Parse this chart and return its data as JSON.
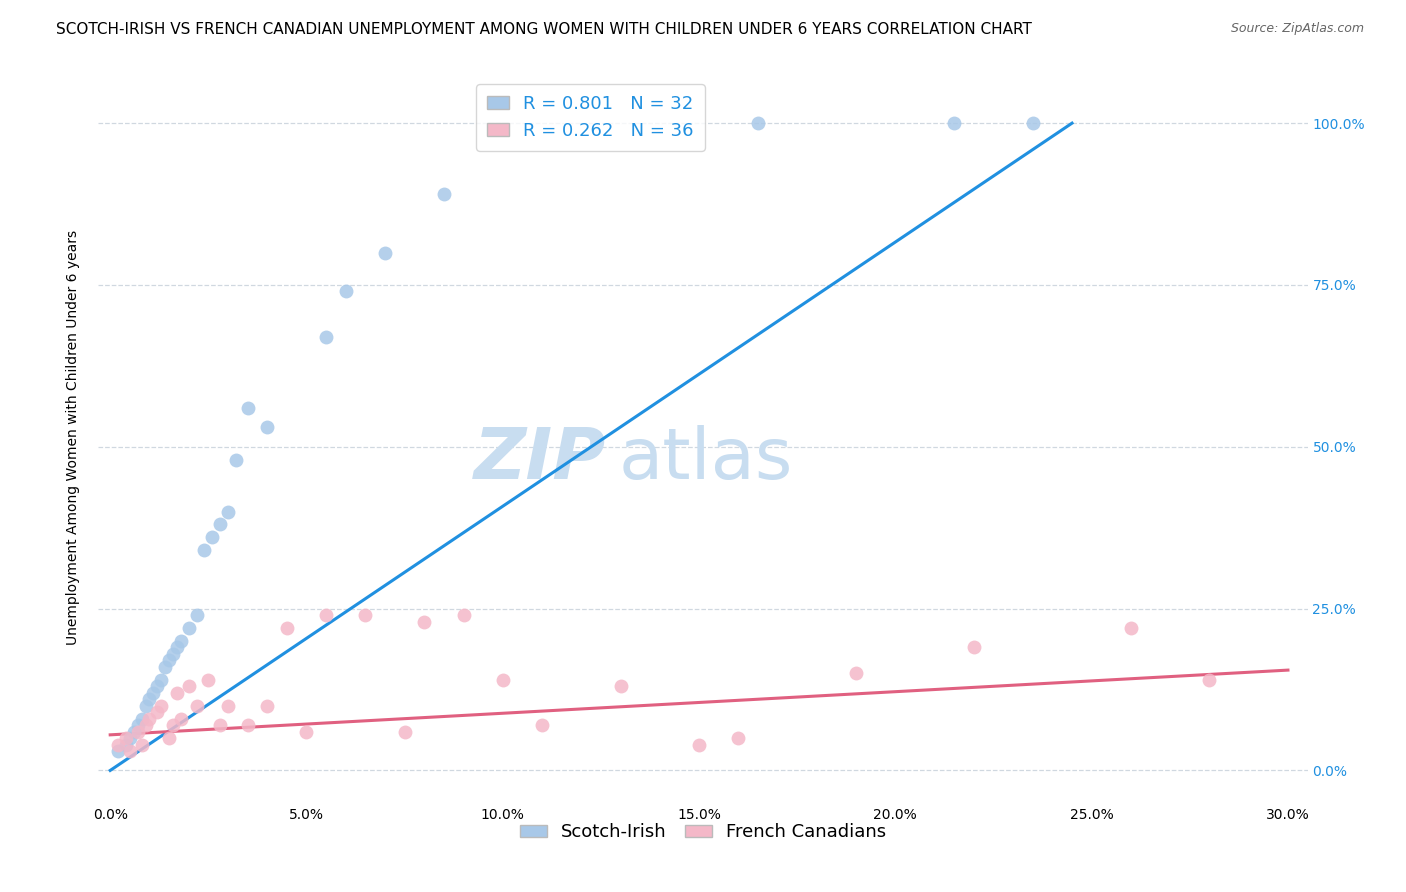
{
  "title": "SCOTCH-IRISH VS FRENCH CANADIAN UNEMPLOYMENT AMONG WOMEN WITH CHILDREN UNDER 6 YEARS CORRELATION CHART",
  "source": "Source: ZipAtlas.com",
  "ylabel": "Unemployment Among Women with Children Under 6 years",
  "x_ticks": [
    "0.0%",
    "5.0%",
    "10.0%",
    "15.0%",
    "20.0%",
    "25.0%",
    "30.0%"
  ],
  "x_tick_vals": [
    0.0,
    0.05,
    0.1,
    0.15,
    0.2,
    0.25,
    0.3
  ],
  "y_ticks_right": [
    "100.0%",
    "75.0%",
    "50.0%",
    "25.0%",
    "0.0%"
  ],
  "y_tick_right_vals": [
    1.0,
    0.75,
    0.5,
    0.25,
    0.0
  ],
  "xlim": [
    -0.003,
    0.305
  ],
  "ylim": [
    -0.05,
    1.08
  ],
  "r_blue": 0.801,
  "n_blue": 32,
  "r_pink": 0.262,
  "n_pink": 36,
  "blue_color": "#a8c8e8",
  "pink_color": "#f4b8c8",
  "line_blue": "#2090e0",
  "line_pink": "#e06080",
  "scatter_alpha": 0.85,
  "scatter_size": 100,
  "watermark_zip": "ZIP",
  "watermark_atlas": "atlas",
  "scotch_irish_x": [
    0.002,
    0.004,
    0.005,
    0.006,
    0.007,
    0.008,
    0.009,
    0.01,
    0.011,
    0.012,
    0.013,
    0.014,
    0.015,
    0.016,
    0.017,
    0.018,
    0.02,
    0.022,
    0.024,
    0.026,
    0.028,
    0.03,
    0.032,
    0.035,
    0.04,
    0.055,
    0.06,
    0.07,
    0.085,
    0.165,
    0.215,
    0.235
  ],
  "scotch_irish_y": [
    0.03,
    0.04,
    0.05,
    0.06,
    0.07,
    0.08,
    0.1,
    0.11,
    0.12,
    0.13,
    0.14,
    0.16,
    0.17,
    0.18,
    0.19,
    0.2,
    0.22,
    0.24,
    0.34,
    0.36,
    0.38,
    0.4,
    0.48,
    0.56,
    0.53,
    0.67,
    0.74,
    0.8,
    0.89,
    1.0,
    1.0,
    1.0
  ],
  "french_canadian_x": [
    0.002,
    0.004,
    0.005,
    0.007,
    0.008,
    0.009,
    0.01,
    0.012,
    0.013,
    0.015,
    0.016,
    0.017,
    0.018,
    0.02,
    0.022,
    0.025,
    0.028,
    0.03,
    0.035,
    0.04,
    0.045,
    0.05,
    0.055,
    0.065,
    0.075,
    0.08,
    0.09,
    0.1,
    0.11,
    0.13,
    0.15,
    0.16,
    0.19,
    0.22,
    0.26,
    0.28
  ],
  "french_canadian_y": [
    0.04,
    0.05,
    0.03,
    0.06,
    0.04,
    0.07,
    0.08,
    0.09,
    0.1,
    0.05,
    0.07,
    0.12,
    0.08,
    0.13,
    0.1,
    0.14,
    0.07,
    0.1,
    0.07,
    0.1,
    0.22,
    0.06,
    0.24,
    0.24,
    0.06,
    0.23,
    0.24,
    0.14,
    0.07,
    0.13,
    0.04,
    0.05,
    0.15,
    0.19,
    0.22,
    0.14
  ],
  "blue_line_x": [
    0.0,
    0.245
  ],
  "blue_line_y": [
    0.0,
    1.0
  ],
  "pink_line_x": [
    0.0,
    0.3
  ],
  "pink_line_y": [
    0.055,
    0.155
  ],
  "background_color": "#ffffff",
  "grid_color": "#d0d8e0",
  "title_fontsize": 11,
  "source_fontsize": 9,
  "axis_label_fontsize": 10,
  "tick_fontsize": 10,
  "legend_fontsize": 13,
  "watermark_fontsize_zip": 52,
  "watermark_fontsize_atlas": 52,
  "watermark_color": "#c8ddf0",
  "right_tick_color": "#2090e0"
}
